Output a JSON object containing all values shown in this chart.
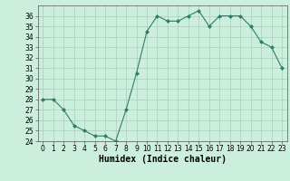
{
  "x": [
    0,
    1,
    2,
    3,
    4,
    5,
    6,
    7,
    8,
    9,
    10,
    11,
    12,
    13,
    14,
    15,
    16,
    17,
    18,
    19,
    20,
    21,
    22,
    23
  ],
  "y": [
    28,
    28,
    27,
    25.5,
    25,
    24.5,
    24.5,
    24,
    27,
    30.5,
    34.5,
    36,
    35.5,
    35.5,
    36,
    36.5,
    35,
    36,
    36,
    36,
    35,
    33.5,
    33,
    31
  ],
  "line_color": "#2e7d6e",
  "marker": "D",
  "marker_size": 2,
  "background_color": "#cceedd",
  "grid_color": "#aaccbb",
  "xlabel": "Humidex (Indice chaleur)",
  "xlim": [
    -0.5,
    23.5
  ],
  "ylim": [
    24,
    37
  ],
  "yticks": [
    24,
    25,
    26,
    27,
    28,
    29,
    30,
    31,
    32,
    33,
    34,
    35,
    36
  ],
  "xticks": [
    0,
    1,
    2,
    3,
    4,
    5,
    6,
    7,
    8,
    9,
    10,
    11,
    12,
    13,
    14,
    15,
    16,
    17,
    18,
    19,
    20,
    21,
    22,
    23
  ],
  "tick_fontsize": 5.5,
  "xlabel_fontsize": 7
}
